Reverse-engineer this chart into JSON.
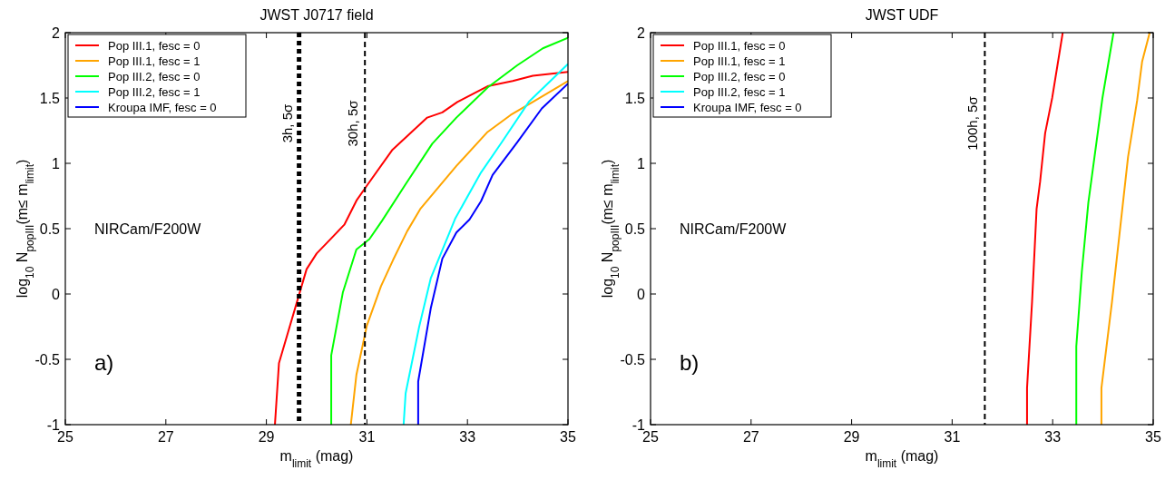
{
  "chart_data": [
    {
      "type": "line",
      "title": "JWST J0717 field",
      "xlabel": "m$_{limit}$ (mag)",
      "ylabel": "log$_{10}$ N$_{popIII}$(m≤ m$_{limit}$)",
      "xlim": [
        25,
        35
      ],
      "ylim": [
        -1,
        2
      ],
      "xticks": [
        25,
        27,
        29,
        31,
        33,
        35
      ],
      "yticks": [
        -1,
        -0.5,
        0,
        0.5,
        1,
        1.5,
        2
      ],
      "grid": false,
      "legend": "top left",
      "annotations": [
        "NIRCam/F200W",
        "a)"
      ],
      "ref_lines": [
        {
          "axis": "x",
          "value": 29.65,
          "label": "3h, 5σ",
          "line_style": "dotted"
        },
        {
          "axis": "x",
          "value": 30.96,
          "label": "30h, 5σ",
          "line_style": "dashed"
        }
      ],
      "series": [
        {
          "name": "Pop III.1, fesc = 0",
          "color": "#ff0000",
          "x": [
            29.17,
            29.25,
            29.8,
            30.0,
            30.3,
            30.55,
            30.8,
            31.0,
            31.5,
            32.2,
            32.5,
            32.8,
            33.4,
            33.9,
            34.3,
            35
          ],
          "values": [
            -1,
            -0.53,
            0.19,
            0.31,
            0.43,
            0.53,
            0.72,
            0.83,
            1.1,
            1.35,
            1.39,
            1.47,
            1.59,
            1.63,
            1.67,
            1.7
          ]
        },
        {
          "name": "Pop III.1, fesc = 1",
          "color": "#ffa500",
          "x": [
            30.68,
            30.79,
            31.0,
            31.28,
            31.52,
            31.8,
            32.06,
            32.78,
            33.4,
            33.86,
            34.3,
            35
          ],
          "values": [
            -1,
            -0.62,
            -0.24,
            0.06,
            0.26,
            0.48,
            0.65,
            0.98,
            1.24,
            1.37,
            1.47,
            1.63
          ]
        },
        {
          "name": "Pop III.2, fesc = 0",
          "color": "#00ff00",
          "x": [
            30.29,
            30.29,
            30.52,
            30.79,
            31.05,
            31.3,
            31.77,
            32.3,
            32.78,
            33.4,
            33.99,
            34.5,
            35
          ],
          "values": [
            -1,
            -0.47,
            0.01,
            0.34,
            0.42,
            0.56,
            0.84,
            1.15,
            1.35,
            1.58,
            1.75,
            1.88,
            1.96
          ]
        },
        {
          "name": "Pop III.2, fesc = 1",
          "color": "#00ffff",
          "x": [
            31.73,
            31.77,
            32.04,
            32.27,
            32.76,
            33.27,
            33.68,
            34.22,
            35
          ],
          "values": [
            -1,
            -0.76,
            -0.25,
            0.12,
            0.58,
            0.93,
            1.16,
            1.47,
            1.76
          ]
        },
        {
          "name": "Kroupa IMF, fesc = 0",
          "color": "#0000ff",
          "x": [
            32.02,
            32.02,
            32.27,
            32.5,
            32.78,
            33.04,
            33.27,
            33.5,
            33.99,
            34.48,
            35
          ],
          "values": [
            -1,
            -0.67,
            -0.11,
            0.27,
            0.47,
            0.57,
            0.71,
            0.91,
            1.16,
            1.42,
            1.61
          ]
        }
      ]
    },
    {
      "type": "line",
      "title": "JWST UDF",
      "xlabel": "m$_{limit}$ (mag)",
      "ylabel": "log$_{10}$ N$_{popIII}$(m≤ m$_{limit}$)",
      "xlim": [
        25,
        35
      ],
      "ylim": [
        -1,
        2
      ],
      "xticks": [
        25,
        27,
        29,
        31,
        33,
        35
      ],
      "yticks": [
        -1,
        -0.5,
        0,
        0.5,
        1,
        1.5,
        2
      ],
      "grid": false,
      "legend": "top left",
      "annotations": [
        "NIRCam/F200W",
        "b)"
      ],
      "ref_lines": [
        {
          "axis": "x",
          "value": 31.65,
          "label": "100h, 5σ",
          "line_style": "dashed"
        }
      ],
      "series": [
        {
          "name": "Pop III.1, fesc = 0",
          "color": "#ff0000",
          "x": [
            32.49,
            32.49,
            32.59,
            32.68,
            32.75,
            32.85,
            32.99,
            33.2
          ],
          "values": [
            -1,
            -0.72,
            -0.06,
            0.65,
            0.86,
            1.23,
            1.5,
            2
          ]
        },
        {
          "name": "Pop III.1, fesc = 1",
          "color": "#ffa500",
          "x": [
            33.97,
            33.97,
            34.18,
            34.5,
            34.68,
            34.78,
            34.93
          ],
          "values": [
            -1,
            -0.72,
            -0.06,
            1.05,
            1.48,
            1.78,
            2
          ]
        },
        {
          "name": "Pop III.2, fesc = 0",
          "color": "#00ff00",
          "x": [
            33.47,
            33.47,
            33.58,
            33.71,
            33.99,
            34.21
          ],
          "values": [
            -1,
            -0.4,
            0.17,
            0.7,
            1.5,
            2
          ]
        },
        {
          "name": "Pop III.2, fesc = 1",
          "color": "#00ffff"
        },
        {
          "name": "Kroupa IMF, fesc = 0",
          "color": "#0000ff"
        }
      ]
    }
  ]
}
